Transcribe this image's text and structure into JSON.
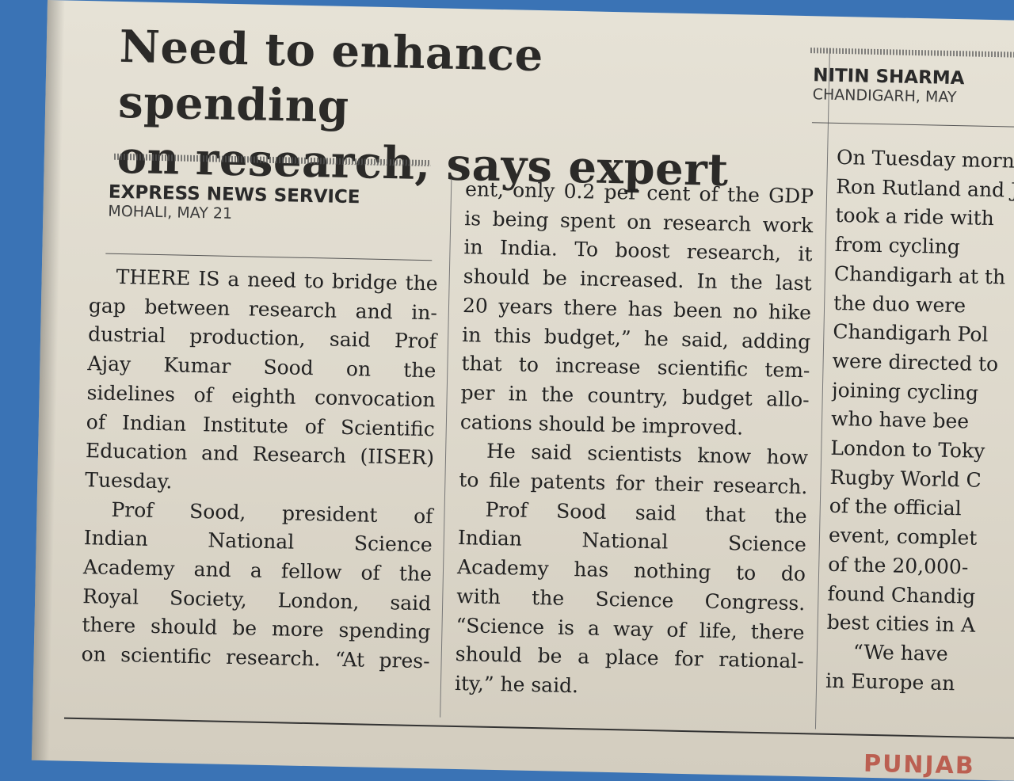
{
  "article": {
    "headline_lines": [
      "Need to enhance spending",
      "on research, says expert"
    ],
    "byline": "EXPRESS NEWS SERVICE",
    "dateline": "MOHALI, MAY 21",
    "col1": [
      "THERE IS a need to bridge the",
      "gap between research and in-",
      "dustrial production, said Prof",
      "Ajay Kumar Sood on the",
      "sidelines of eighth convocation",
      "of Indian Institute of Scientific",
      "Education and Research (IISER)",
      "Tuesday.",
      "Prof Sood, president of",
      "Indian National Science",
      "Academy and a fellow of the",
      "Royal Society, London, said",
      "there should be more spending",
      "on scientific research. “At pres-"
    ],
    "col2": [
      "ent, only 0.2 per cent of the GDP",
      "is being spent on research work",
      "in India. To boost research, it",
      "should be increased. In the last",
      "20 years there has been no hike",
      "in this budget,” he said, adding",
      "that to increase scientific tem-",
      "per in the country, budget allo-",
      "cations should be improved.",
      "He said scientists know how",
      "to file patents for their research.",
      "Prof Sood said that the",
      "Indian National Science",
      "Academy has nothing to do",
      "with the Science Congress.",
      "“Science is a way of life, there",
      "should be a place for rational-",
      "ity,” he said."
    ]
  },
  "sidebar_article": {
    "byline": "NITIN SHARMA",
    "dateline": "CHANDIGARH, MAY",
    "lines": [
      "On Tuesday morni",
      "Ron Rutland and J",
      "took a ride with",
      "from cycling",
      "Chandigarh at th",
      "the duo were",
      "Chandigarh Pol",
      "were directed to",
      "joining cycling",
      "who have bee",
      "London to Toky",
      "Rugby World C",
      "of the official",
      "event, complet",
      "of the 20,000-",
      "found Chandig",
      "best cities in A",
      "“We have",
      "in Europe an"
    ]
  },
  "bottom_red_text": "PUNJAB"
}
